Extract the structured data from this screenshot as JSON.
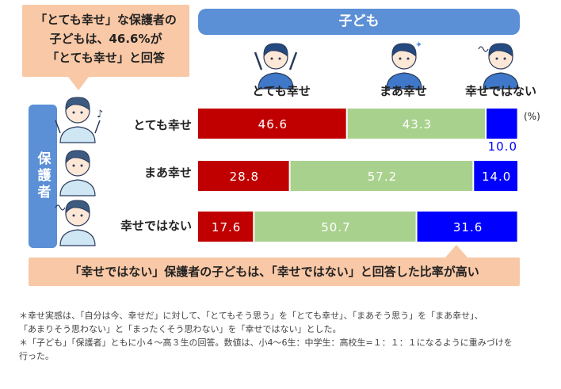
{
  "callout_top": {
    "lines": [
      "「とても幸せ」な保護者の",
      "子どもは、46.6%が",
      "「とても幸せ」と回答"
    ]
  },
  "child_header": "子ども",
  "parent_header": "保護者",
  "callout_bottom": "「幸せではない」保護者の子どもは、「幸せではない」と回答した比率が高い",
  "notes": [
    "＊幸せ実感は、「自分は今、幸せだ」に対して、「とてもそう思う」を「とても幸せ」、「まあそう思う」を「まあ幸せ」、",
    "「あまりそう思わない」と「まったくそう思わない」を「幸せではない」とした。",
    "＊「子ども」「保護者」ともに小４～高３生の回答。数値は、小4～6生：中学生：高校生=１：１：１になるように重みづけを",
    "行った。"
  ],
  "colors": {
    "very_happy": "#c00000",
    "somewhat_happy": "#a9d18e",
    "not_happy": "#0000ff",
    "header_blue": "#5b8fd6",
    "callout": "#f9c8a6"
  },
  "chart_data": {
    "type": "bar",
    "orientation": "horizontal",
    "stacked": true,
    "unit": "(%)",
    "categories": [
      "とても幸せ",
      "まあ幸せ",
      "幸せではない"
    ],
    "series": [
      {
        "name": "とても幸せ",
        "values": [
          46.6,
          28.8,
          17.6
        ]
      },
      {
        "name": "まあ幸せ",
        "values": [
          43.3,
          57.2,
          50.7
        ]
      },
      {
        "name": "幸せではない",
        "values": [
          10.0,
          14.0,
          31.6
        ]
      }
    ],
    "xlim": [
      0,
      100
    ],
    "value_labels": [
      [
        "46.6",
        "43.3",
        "10.0"
      ],
      [
        "28.8",
        "57.2",
        "14.0"
      ],
      [
        "17.6",
        "50.7",
        "31.6"
      ]
    ]
  }
}
